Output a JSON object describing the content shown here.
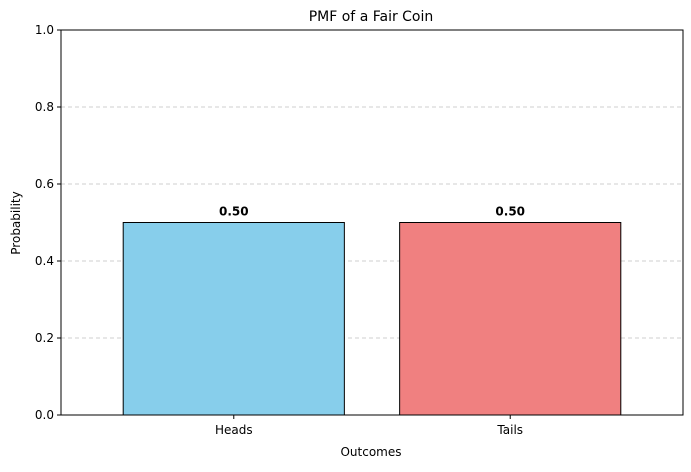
{
  "chart_data": {
    "type": "bar",
    "title": "PMF of a Fair Coin",
    "xlabel": "Outcomes",
    "ylabel": "Probability",
    "categories": [
      "Heads",
      "Tails"
    ],
    "values": [
      0.5,
      0.5
    ],
    "data_labels": [
      "0.50",
      "0.50"
    ],
    "ylim": [
      0,
      1.0
    ],
    "yticks": [
      0.0,
      0.2,
      0.4,
      0.6,
      0.8,
      1.0
    ],
    "ytick_labels": [
      "0.0",
      "0.2",
      "0.4",
      "0.6",
      "0.8",
      "1.0"
    ],
    "colors": [
      "#87CEEB",
      "#F08080"
    ],
    "edge_color": "#000000",
    "grid": "y-axis dashed"
  }
}
